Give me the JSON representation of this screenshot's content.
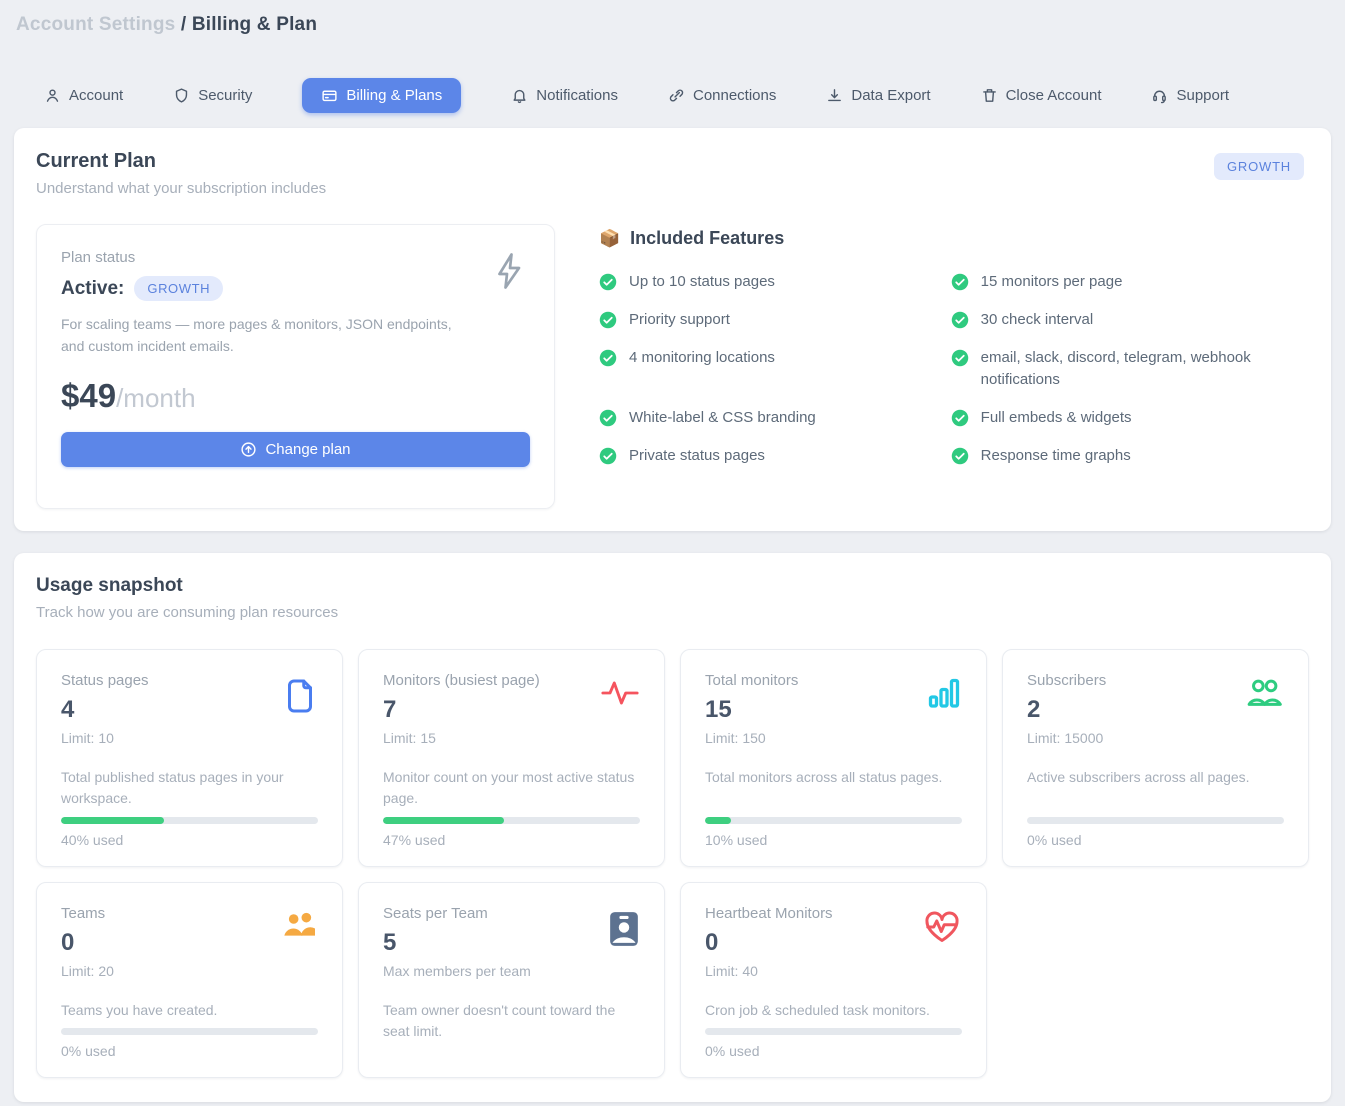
{
  "breadcrumb": {
    "section": "Account Settings",
    "separator": " / ",
    "page": "Billing & Plan"
  },
  "tabs": [
    {
      "label": "Account"
    },
    {
      "label": "Security"
    },
    {
      "label": "Billing & Plans"
    },
    {
      "label": "Notifications"
    },
    {
      "label": "Connections"
    },
    {
      "label": "Data Export"
    },
    {
      "label": "Close Account"
    },
    {
      "label": "Support"
    }
  ],
  "current_plan": {
    "title": "Current Plan",
    "subtitle": "Understand what your subscription includes",
    "corner_badge": "GROWTH",
    "plan_card": {
      "label": "Plan status",
      "status": "Active:",
      "plan_badge": "GROWTH",
      "description": "For scaling teams — more pages & monitors, JSON endpoints, and custom incident emails.",
      "price": "$49",
      "period": "/month",
      "button_label": "Change plan"
    },
    "features": {
      "emoji": "📦",
      "title": "Included Features",
      "left": [
        "Up to 10 status pages",
        "Priority support",
        "4 monitoring locations",
        "White-label & CSS branding",
        "Private status pages"
      ],
      "right": [
        "15 monitors per page",
        "30 check interval",
        "email, slack, discord, telegram, webhook notifications",
        "Full embeds & widgets",
        "Response time graphs"
      ]
    }
  },
  "usage": {
    "title": "Usage snapshot",
    "subtitle": "Track how you are consuming plan resources",
    "cards": [
      {
        "title": "Status pages",
        "value": "4",
        "limit": "Limit: 10",
        "description": "Total published status pages in your workspace.",
        "percent": 40,
        "percent_label": "40% used",
        "icon": "file",
        "icon_color": "#4a7df0"
      },
      {
        "title": "Monitors (busiest page)",
        "value": "7",
        "limit": "Limit: 15",
        "description": "Monitor count on your most active status page.",
        "percent": 47,
        "percent_label": "47% used",
        "icon": "pulse",
        "icon_color": "#f5545e"
      },
      {
        "title": "Total monitors",
        "value": "15",
        "limit": "Limit: 150",
        "description": "Total monitors across all status pages.",
        "percent": 10,
        "percent_label": "10% used",
        "icon": "bar-chart",
        "icon_color": "#22c8e5"
      },
      {
        "title": "Subscribers",
        "value": "2",
        "limit": "Limit: 15000",
        "description": "Active subscribers across all pages.",
        "percent": 0,
        "percent_label": "0% used",
        "icon": "users-outline",
        "icon_color": "#2ecc80"
      },
      {
        "title": "Teams",
        "value": "0",
        "limit": "Limit: 20",
        "description": "Teams you have created.",
        "percent": 0,
        "percent_label": "0% used",
        "icon": "users-filled",
        "icon_color": "#f5a942"
      },
      {
        "title": "Seats per Team",
        "value": "5",
        "limit": "Max members per team",
        "description": "Team owner doesn't count toward the seat limit.",
        "percent": null,
        "percent_label": "",
        "icon": "id-badge",
        "icon_color": "#5d7290"
      },
      {
        "title": "Heartbeat Monitors",
        "value": "0",
        "limit": "Limit: 40",
        "description": "Cron job & scheduled task monitors.",
        "percent": 0,
        "percent_label": "0% used",
        "icon": "heart-pulse",
        "icon_color": "#f0565e"
      }
    ]
  },
  "colors": {
    "accent_blue": "#5c86e8",
    "badge_bg": "#e3eafc",
    "badge_text": "#5b82dd",
    "check_green": "#2fca7f",
    "progress_green": "#3ecf80",
    "page_bg": "#edeff3"
  }
}
